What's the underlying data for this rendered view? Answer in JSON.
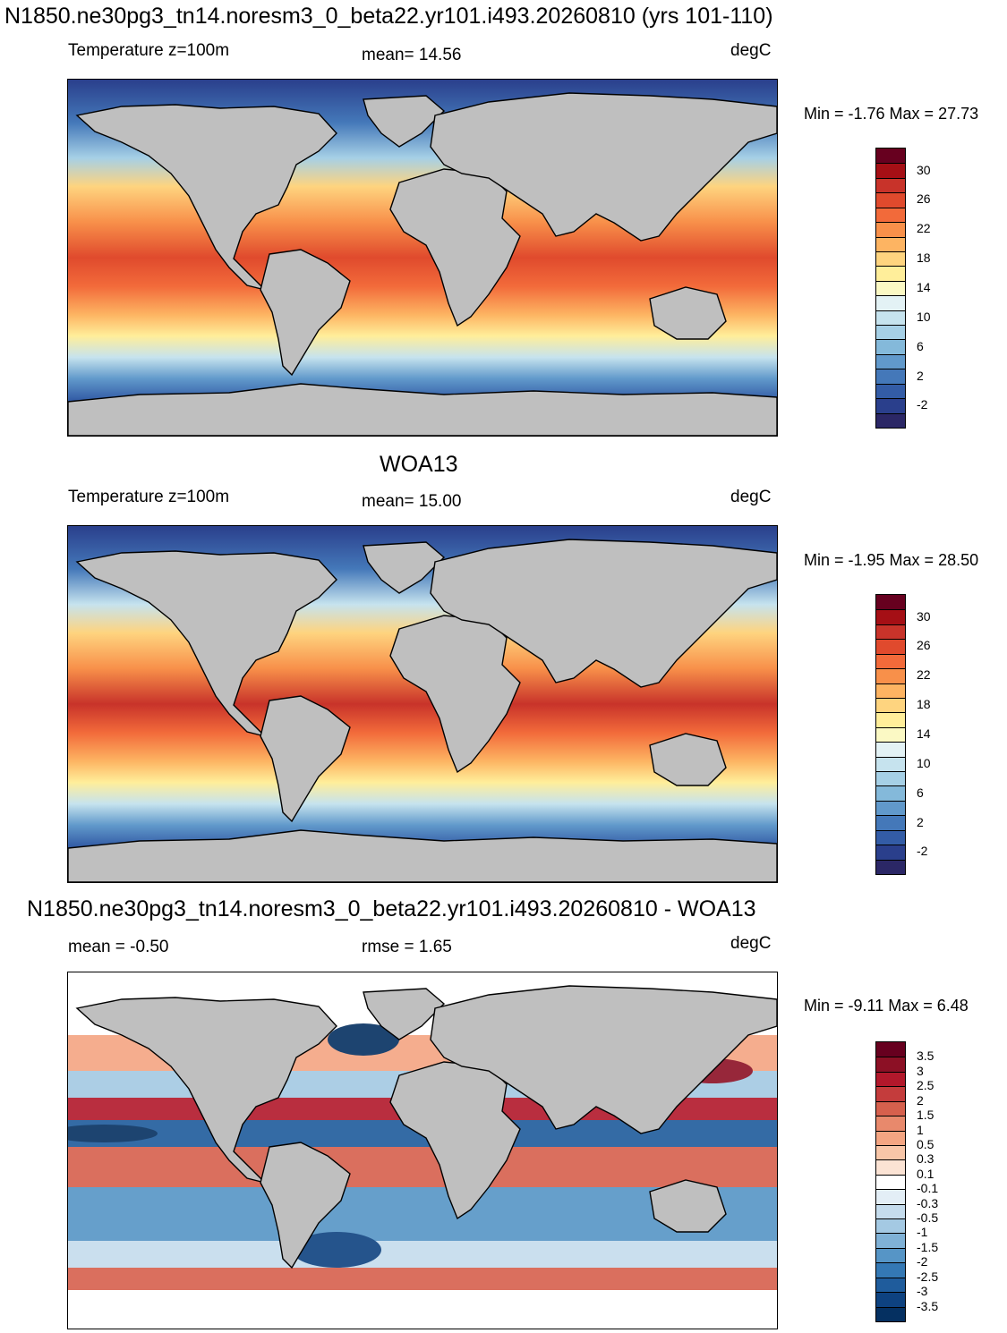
{
  "panels": [
    {
      "title": "N1850.ne30pg3_tn14.noresm3_0_beta22.yr101.i493.20260810 (yrs 101-110)",
      "left_label": "Temperature z=100m",
      "center_label": "mean=  14.56",
      "units": "degC",
      "minmax": "Min =  -1.76 Max =  27.73",
      "type": "temperature",
      "colorbar_labels": [
        "30",
        "26",
        "22",
        "18",
        "14",
        "10",
        "6",
        "2",
        "-2"
      ]
    },
    {
      "title": "WOA13",
      "left_label": "Temperature z=100m",
      "center_label": "mean=  15.00",
      "units": "degC",
      "minmax": "Min =  -1.95 Max =  28.50",
      "type": "temperature",
      "colorbar_labels": [
        "30",
        "26",
        "22",
        "18",
        "14",
        "10",
        "6",
        "2",
        "-2"
      ]
    },
    {
      "title": "N1850.ne30pg3_tn14.noresm3_0_beta22.yr101.i493.20260810 - WOA13",
      "left_label": "mean =  -0.50",
      "center_label": "rmse =   1.65",
      "units": "degC",
      "minmax": "Min =  -9.11 Max =   6.48",
      "type": "difference",
      "colorbar_labels": [
        "3.5",
        "3",
        "2.5",
        "2",
        "1.5",
        "1",
        "0.5",
        "0.3",
        "0.1",
        "-0.1",
        "-0.3",
        "-0.5",
        "-1",
        "-1.5",
        "-2",
        "-2.5",
        "-3",
        "-3.5"
      ]
    }
  ],
  "colors": {
    "temperature_scale": [
      "#67001f",
      "#a50f15",
      "#c8332a",
      "#e04a2d",
      "#f26a3a",
      "#f8904a",
      "#fdb462",
      "#fed47f",
      "#ffee9a",
      "#fbf9c4",
      "#e3f2f5",
      "#c6e3ee",
      "#a6d0e6",
      "#84b9da",
      "#6199cb",
      "#4478b9",
      "#335ca6",
      "#2a3f8c",
      "#2b2766"
    ],
    "difference_scale": [
      "#67001f",
      "#8c1025",
      "#b2182b",
      "#c43c3c",
      "#d6604d",
      "#e8896c",
      "#f4a582",
      "#f8c6a8",
      "#fbe3d4",
      "#ffffff",
      "#e3eef6",
      "#c5dced",
      "#a4c9e3",
      "#7fb1d6",
      "#5695c6",
      "#3478b4",
      "#1f5c9c",
      "#0e4280",
      "#053061"
    ],
    "land": "#bfbfbf"
  }
}
